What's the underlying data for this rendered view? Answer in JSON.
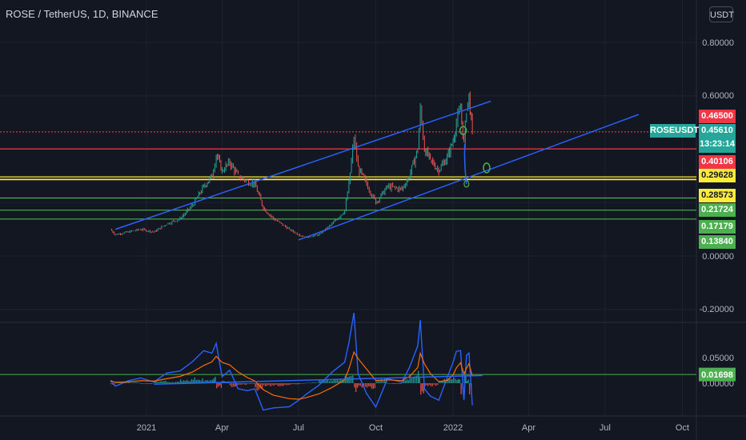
{
  "header": {
    "title": "ROSE / TetherUS, 1D, BINANCE",
    "currency_button": "USDT"
  },
  "price_axis": {
    "ticks": [
      "0.80000",
      "0.60000",
      "0.00000",
      "-0.20000"
    ]
  },
  "indicator_axis": {
    "ticks": [
      "0.05000",
      "0.00000"
    ]
  },
  "time_axis": {
    "labels": [
      "2021",
      "Apr",
      "Jul",
      "Oct",
      "2022",
      "Apr",
      "Jul",
      "Oct"
    ]
  },
  "symbol_tag": "ROSEUSDT",
  "current_price": {
    "value": "0.45610",
    "countdown": "13:23:14",
    "color": "#26a69a"
  },
  "levels": [
    {
      "label": "0.46500",
      "value": 0.465,
      "style": "dotted",
      "color": "#f23645",
      "text_color": "#ffffff"
    },
    {
      "label": "0.40106",
      "value": 0.40106,
      "style": "solid",
      "color": "#f23645",
      "text_color": "#ffffff"
    },
    {
      "label": "0.29628",
      "value": 0.29628,
      "style": "solid",
      "color": "#ffeb3b",
      "text_color": "#131722"
    },
    {
      "label": "0.28573",
      "value": 0.28573,
      "style": "solid",
      "color": "#ffeb3b",
      "text_color": "#131722"
    },
    {
      "label": "0.21724",
      "value": 0.21724,
      "style": "solid",
      "color": "#4caf50",
      "text_color": "#ffffff"
    },
    {
      "label": "0.17179",
      "value": 0.17179,
      "style": "solid",
      "color": "#4caf50",
      "text_color": "#ffffff"
    },
    {
      "label": "0.13840",
      "value": 0.1384,
      "style": "solid",
      "color": "#4caf50",
      "text_color": "#ffffff"
    }
  ],
  "indicator_level": {
    "label": "0.01698",
    "value": 0.01698,
    "color": "#4caf50"
  },
  "chart_data": {
    "type": "line",
    "ylim": [
      -0.25,
      0.9
    ],
    "indicator_ylim": [
      -0.03,
      0.06
    ],
    "grid": true,
    "series": [
      {
        "values": [
          [
            "2020-11-19",
            0.1
          ],
          [
            "2020-11-25",
            0.08
          ],
          [
            "2020-12-10",
            0.09
          ],
          [
            "2020-12-25",
            0.1
          ],
          [
            "2021-01-10",
            0.09
          ],
          [
            "2021-01-25",
            0.12
          ],
          [
            "2021-02-10",
            0.14
          ],
          [
            "2021-02-25",
            0.19
          ],
          [
            "2021-03-10",
            0.26
          ],
          [
            "2021-03-20",
            0.3
          ],
          [
            "2021-03-25",
            0.38
          ],
          [
            "2021-04-01",
            0.32
          ],
          [
            "2021-04-10",
            0.35
          ],
          [
            "2021-04-20",
            0.3
          ],
          [
            "2021-05-01",
            0.28
          ],
          [
            "2021-05-10",
            0.27
          ],
          [
            "2021-05-20",
            0.18
          ],
          [
            "2021-06-01",
            0.14
          ],
          [
            "2021-06-20",
            0.1
          ],
          [
            "2021-07-01",
            0.08
          ],
          [
            "2021-07-10",
            0.07
          ],
          [
            "2021-07-25",
            0.08
          ],
          [
            "2021-08-10",
            0.12
          ],
          [
            "2021-08-25",
            0.17
          ],
          [
            "2021-08-30",
            0.27
          ],
          [
            "2021-09-05",
            0.44
          ],
          [
            "2021-09-10",
            0.33
          ],
          [
            "2021-09-20",
            0.27
          ],
          [
            "2021-10-01",
            0.2
          ],
          [
            "2021-10-15",
            0.26
          ],
          [
            "2021-11-01",
            0.25
          ],
          [
            "2021-11-10",
            0.3
          ],
          [
            "2021-11-20",
            0.4
          ],
          [
            "2021-11-23",
            0.55
          ],
          [
            "2021-11-28",
            0.4
          ],
          [
            "2021-12-05",
            0.36
          ],
          [
            "2021-12-15",
            0.32
          ],
          [
            "2021-12-25",
            0.37
          ],
          [
            "2022-01-01",
            0.43
          ],
          [
            "2022-01-05",
            0.5
          ],
          [
            "2022-01-10",
            0.55
          ],
          [
            "2022-01-14",
            0.42
          ],
          [
            "2022-01-17",
            0.55
          ],
          [
            "2022-01-20",
            0.6
          ],
          [
            "2022-01-24",
            0.4561
          ]
        ]
      }
    ],
    "channel_lines": [
      {
        "from": [
          "2020-11-25",
          0.1
        ],
        "to": [
          "2022-02-15",
          0.58
        ],
        "color": "#2962ff"
      },
      {
        "from": [
          "2021-07-01",
          0.06
        ],
        "to": [
          "2022-08-10",
          0.53
        ],
        "color": "#2962ff"
      }
    ]
  }
}
